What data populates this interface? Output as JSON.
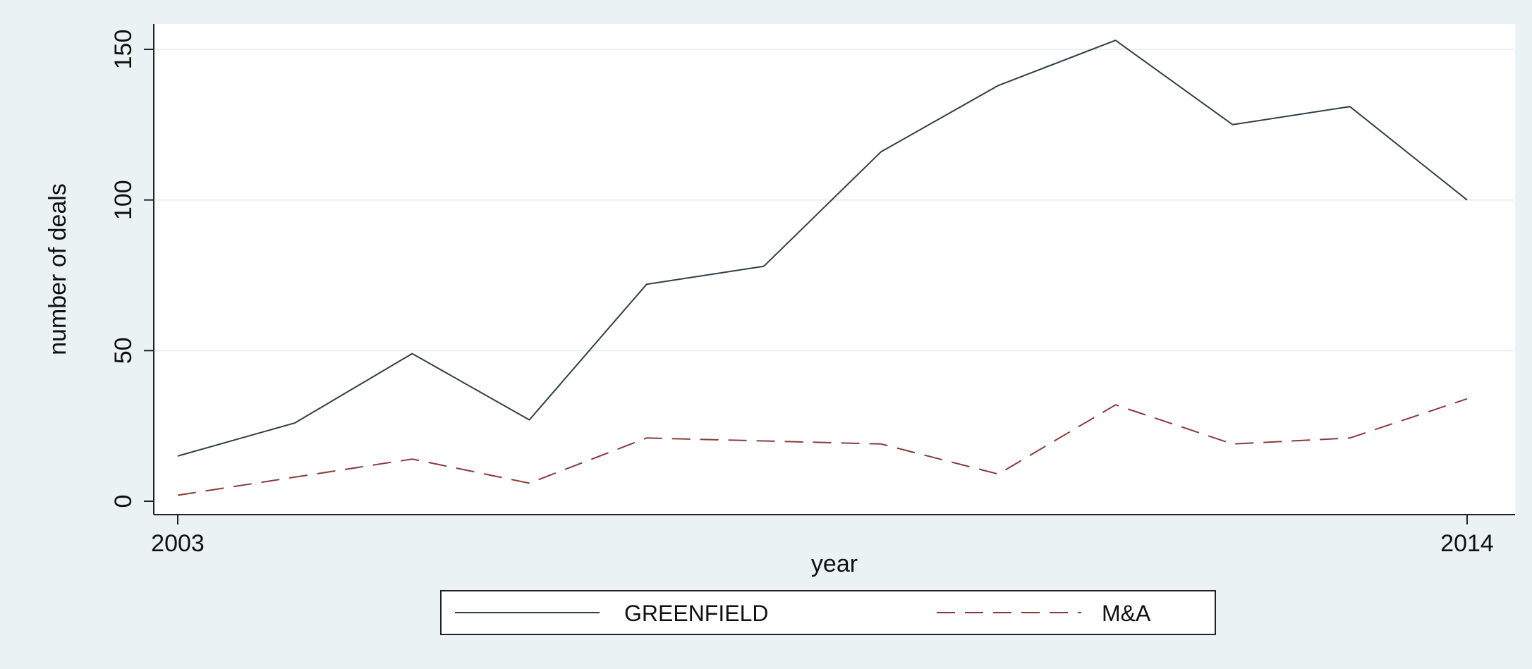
{
  "chart_data": {
    "type": "line",
    "title": "",
    "xlabel": "year",
    "ylabel": "number of deals",
    "xlim": [
      2003,
      2014
    ],
    "ylim": [
      0,
      150
    ],
    "x_ticks": [
      "2003",
      "2014"
    ],
    "y_ticks": [
      "0",
      "50",
      "100",
      "150"
    ],
    "grid": true,
    "legend_position": "bottom",
    "x": [
      2003,
      2004,
      2005,
      2006,
      2007,
      2008,
      2009,
      2010,
      2011,
      2012,
      2013,
      2014
    ],
    "series": [
      {
        "name": "GREENFIELD",
        "style": "solid",
        "color": "#2f3f4a",
        "values": [
          15,
          26,
          49,
          27,
          72,
          78,
          116,
          138,
          153,
          125,
          131,
          100
        ]
      },
      {
        "name": "M&A",
        "style": "dashed",
        "color": "#8a3a3a",
        "values": [
          2,
          8,
          14,
          6,
          21,
          20,
          19,
          9,
          32,
          19,
          21,
          34
        ]
      }
    ]
  },
  "colors": {
    "background": "#eaf2f3",
    "plot_area": "#ffffff",
    "gridline": "#e9eef1",
    "axis": "#222222"
  }
}
